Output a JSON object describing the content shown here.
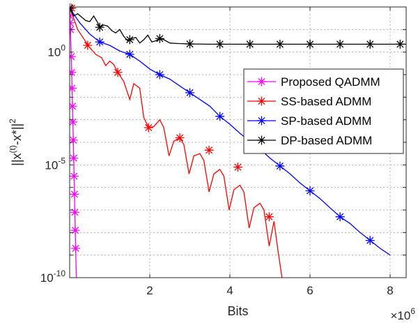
{
  "chart_data": {
    "type": "line",
    "xlabel": "Bits",
    "ylabel": "||x(t)-x*||2",
    "x_multiplier": "×10^6",
    "xlim": [
      0,
      8.4
    ],
    "yscale": "log",
    "ylim_exp": [
      -10,
      2
    ],
    "xticks": [
      {
        "value": 2,
        "label": "2"
      },
      {
        "value": 4,
        "label": "4"
      },
      {
        "value": 6,
        "label": "6"
      },
      {
        "value": 8,
        "label": "8"
      }
    ],
    "yticks": [
      {
        "exp": 0,
        "label": "10",
        "sup": "0"
      },
      {
        "exp": -5,
        "label": "10",
        "sup": "-5"
      },
      {
        "exp": -10,
        "label": "10",
        "sup": "-10"
      }
    ],
    "grid": true,
    "legend_position": "right",
    "series": [
      {
        "name": "Proposed QADMM",
        "color": "#ff00ff",
        "marker": "star",
        "line_x": [
          0.0,
          0.005,
          0.01,
          0.02,
          0.03,
          0.04,
          0.05,
          0.06,
          0.07,
          0.08,
          0.09,
          0.1,
          0.11,
          0.12,
          0.13,
          0.14,
          0.15,
          0.16,
          0.17
        ],
        "line_y": [
          1.95,
          1.6,
          1.3,
          1.0,
          0.4,
          -0.2,
          -0.9,
          -1.6,
          -2.4,
          -3.1,
          -3.9,
          -4.7,
          -5.5,
          -6.3,
          -7.1,
          -7.9,
          -8.7,
          -9.5,
          -10.0
        ],
        "mark_x": [
          0.005,
          0.01,
          0.02,
          0.04,
          0.05,
          0.06,
          0.07,
          0.08,
          0.09,
          0.1,
          0.11,
          0.12,
          0.13,
          0.14,
          0.15
        ],
        "mark_y": [
          1.6,
          1.3,
          1.0,
          -0.2,
          -0.9,
          -1.6,
          -2.4,
          -3.1,
          -3.9,
          -4.7,
          -5.5,
          -6.3,
          -7.1,
          -7.9,
          -8.7
        ]
      },
      {
        "name": "SS-based ADMM",
        "color": "#ff0000",
        "marker": "star",
        "line_x": [
          0.0,
          0.1,
          0.2,
          0.35,
          0.5,
          0.65,
          0.8,
          0.9,
          1.0,
          1.1,
          1.2,
          1.35,
          1.5,
          1.6,
          1.75,
          1.85,
          1.97,
          2.1,
          2.25,
          2.35,
          2.48,
          2.6,
          2.75,
          2.85,
          2.98,
          3.1,
          3.25,
          3.35,
          3.48,
          3.6,
          3.75,
          3.85,
          3.98,
          4.1,
          4.25,
          4.35,
          4.48,
          4.6,
          4.75,
          4.85,
          4.98,
          5.1,
          5.2,
          5.3
        ],
        "line_y": [
          1.95,
          1.5,
          1.0,
          0.6,
          0.2,
          -0.1,
          -0.25,
          -0.6,
          -0.4,
          -0.55,
          -0.9,
          -1.3,
          -2.1,
          -1.4,
          -1.6,
          -2.9,
          -3.35,
          -3.3,
          -3.0,
          -3.35,
          -4.6,
          -3.95,
          -3.8,
          -4.1,
          -5.4,
          -4.6,
          -4.5,
          -4.8,
          -6.2,
          -5.4,
          -5.2,
          -5.5,
          -7.0,
          -6.1,
          -5.9,
          -6.2,
          -7.8,
          -6.9,
          -6.7,
          -7.0,
          -8.6,
          -7.5,
          -8.8,
          -10.0
        ],
        "mark_x": [
          0.05,
          0.45,
          1.2,
          1.97,
          2.75,
          3.48,
          4.2,
          4.98
        ],
        "mark_y": [
          1.95,
          0.3,
          -0.9,
          -3.35,
          -3.8,
          -4.35,
          -5.1,
          -7.3
        ]
      },
      {
        "name": "SP-based ADMM",
        "color": "#0000ff",
        "marker": "star",
        "line_x": [
          0.0,
          0.25,
          0.5,
          0.75,
          1.0,
          1.25,
          1.5,
          1.75,
          2.0,
          2.25,
          2.5,
          2.75,
          3.0,
          3.25,
          3.5,
          3.75,
          4.0,
          4.25,
          4.5,
          4.75,
          5.0,
          5.25,
          5.5,
          5.75,
          6.0,
          6.25,
          6.5,
          6.75,
          7.0,
          7.25,
          7.5,
          7.75,
          8.0
        ],
        "line_y": [
          1.95,
          1.3,
          0.8,
          0.45,
          0.3,
          0.05,
          -0.1,
          -0.4,
          -0.75,
          -1.0,
          -1.2,
          -1.5,
          -1.8,
          -2.1,
          -2.4,
          -2.85,
          -3.2,
          -3.6,
          -3.95,
          -4.3,
          -4.7,
          -5.05,
          -5.4,
          -5.8,
          -6.15,
          -6.5,
          -6.9,
          -7.3,
          -7.6,
          -8.0,
          -8.35,
          -8.7,
          -9.0
        ],
        "mark_x": [
          0.0,
          0.75,
          1.5,
          2.25,
          3.0,
          3.75,
          4.5,
          5.25,
          6.0,
          6.75,
          7.5
        ],
        "mark_y": [
          1.95,
          0.45,
          -0.1,
          -1.0,
          -1.8,
          -2.85,
          -3.95,
          -5.05,
          -6.15,
          -7.3,
          -8.35
        ]
      },
      {
        "name": "DP-based ADMM",
        "color": "#000000",
        "marker": "star",
        "line_x": [
          0.0,
          0.1,
          0.2,
          0.3,
          0.4,
          0.5,
          0.6,
          0.7,
          0.75,
          0.85,
          0.95,
          1.05,
          1.15,
          1.25,
          1.35,
          1.45,
          1.55,
          1.65,
          1.75,
          1.85,
          1.95,
          2.05,
          2.15,
          2.25,
          2.35,
          2.5,
          2.7,
          3.0,
          3.5,
          4.0,
          5.0,
          6.0,
          7.0,
          8.0,
          8.4
        ],
        "line_y": [
          1.95,
          1.6,
          1.7,
          1.55,
          1.4,
          1.35,
          1.6,
          1.3,
          1.1,
          1.2,
          1.15,
          0.95,
          0.85,
          1.0,
          0.7,
          0.5,
          0.6,
          0.65,
          0.4,
          0.55,
          0.75,
          0.45,
          0.5,
          0.6,
          0.55,
          0.4,
          0.38,
          0.36,
          0.35,
          0.35,
          0.35,
          0.35,
          0.35,
          0.35,
          0.35
        ],
        "mark_x": [
          0.0,
          0.75,
          1.5,
          2.25,
          3.0,
          3.75,
          4.5,
          5.25,
          6.0,
          6.75,
          7.5,
          8.25
        ],
        "mark_y": [
          1.95,
          1.1,
          0.55,
          0.6,
          0.36,
          0.35,
          0.35,
          0.35,
          0.35,
          0.35,
          0.35,
          0.35
        ]
      }
    ]
  }
}
